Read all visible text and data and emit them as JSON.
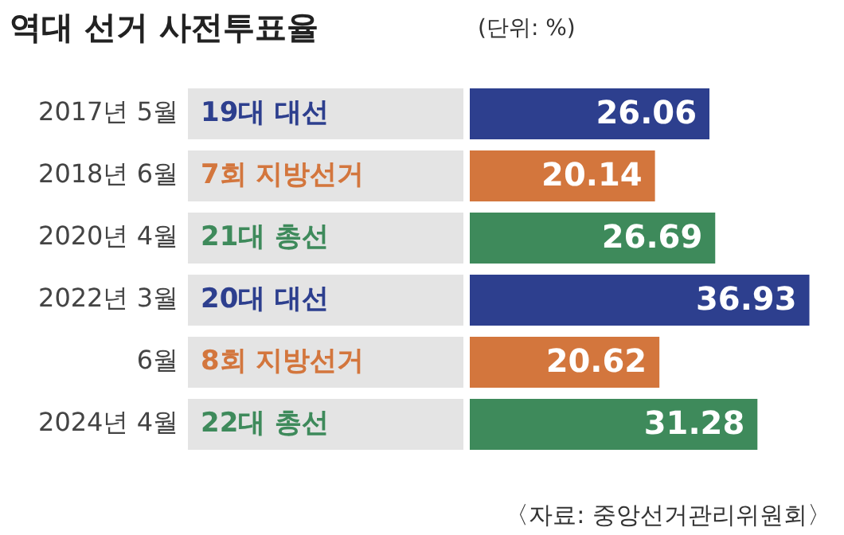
{
  "chart_data": {
    "type": "bar",
    "orientation": "horizontal",
    "title": "역대 선거 사전투표율",
    "subtitle": "(단위: %)",
    "categories": [
      "2017년 5월",
      "2018년 6월",
      "2020년 4월",
      "2022년 3월",
      "6월",
      "2024년 4월"
    ],
    "values": [
      26.06,
      20.14,
      26.69,
      36.93,
      20.62,
      31.28
    ],
    "colors": [
      "#2d3f8e",
      "#d3763d",
      "#3e8a5b",
      "#2d3f8e",
      "#d3763d",
      "#3e8a5b"
    ],
    "tick_labels": "y",
    "data_labels": true,
    "grid": false,
    "legend": false,
    "annotations": [
      "19대 대선",
      "7회 지방선거",
      "21대 총선",
      "20대 대선",
      "8회 지방선거",
      "22대 총선",
      "〈자료: 중앙선거관리위원회〉"
    ]
  }
}
